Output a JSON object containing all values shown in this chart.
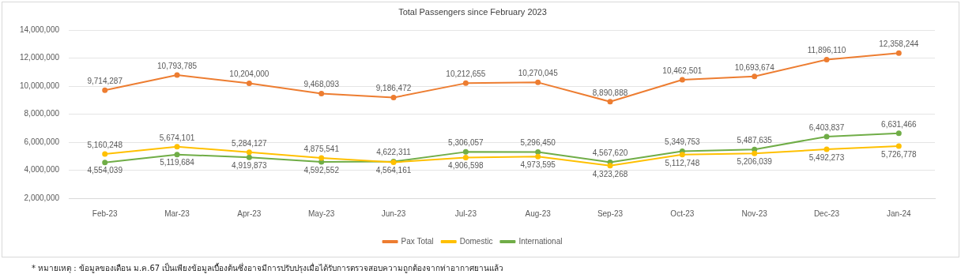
{
  "chart_data": {
    "type": "line",
    "title": "Total Passengers since February 2023",
    "categories": [
      "Feb-23",
      "Mar-23",
      "Apr-23",
      "May-23",
      "Jun-23",
      "Jul-23",
      "Aug-23",
      "Sep-23",
      "Oct-23",
      "Nov-23",
      "Dec-23",
      "Jan-24"
    ],
    "series": [
      {
        "name": "Pax Total",
        "color": "#ed7d31",
        "values": [
          9714287,
          10793785,
          10204000,
          9468093,
          9186472,
          10212655,
          10270045,
          8890888,
          10462501,
          10693674,
          11896110,
          12358244
        ],
        "value_labels": [
          "9,714,287",
          "10,793,785",
          "10,204,000",
          "9,468,093",
          "9,186,472",
          "10,212,655",
          "10,270,045",
          "8,890,888",
          "10,462,501",
          "10,693,674",
          "11,896,110",
          "12,358,244"
        ]
      },
      {
        "name": "Domestic",
        "color": "#ffc000",
        "values": [
          5160248,
          5674101,
          5284127,
          4875541,
          4564161,
          4906598,
          4973595,
          4323268,
          5112748,
          5206039,
          5492273,
          5726778
        ],
        "value_labels": [
          "5,160,248",
          "5,674,101",
          "5,284,127",
          "4,875,541",
          "4,564,161",
          "4,906,598",
          "4,973,595",
          "4,323,268",
          "5,112,748",
          "5,206,039",
          "5,492,273",
          "5,726,778"
        ]
      },
      {
        "name": "International",
        "color": "#70ad47",
        "values": [
          4554039,
          5119684,
          4919873,
          4592552,
          4622311,
          5306057,
          5296450,
          4567620,
          5349753,
          5487635,
          6403837,
          6631466
        ],
        "value_labels": [
          "4,554,039",
          "5,119,684",
          "4,919,873",
          "4,592,552",
          "4,622,311",
          "5,306,057",
          "5,296,450",
          "4,567,620",
          "5,349,753",
          "5,487,635",
          "6,403,837",
          "6,631,466"
        ]
      }
    ],
    "ylim": [
      2000000,
      14000000
    ],
    "yticks": [
      {
        "value": 2000000,
        "label": "2,000,000"
      },
      {
        "value": 4000000,
        "label": "4,000,000"
      },
      {
        "value": 6000000,
        "label": "6,000,000"
      },
      {
        "value": 8000000,
        "label": "8,000,000"
      },
      {
        "value": 10000000,
        "label": "10,000,000"
      },
      {
        "value": 12000000,
        "label": "12,000,000"
      },
      {
        "value": 14000000,
        "label": "14,000,000"
      }
    ],
    "grid": "y",
    "legend": "bottom",
    "marker": "circle",
    "line_style": "solid",
    "annotations": [
      "* หมายเหตุ : ข้อมูลของเดือน ม.ค.67 เป็นเพียงข้อมูลเบื้องต้นซึ่งอาจมีการปรับปรุงเมื่อได้รับการตรวจสอบความถูกต้องจากท่าอากาศยานแล้ว"
    ]
  }
}
